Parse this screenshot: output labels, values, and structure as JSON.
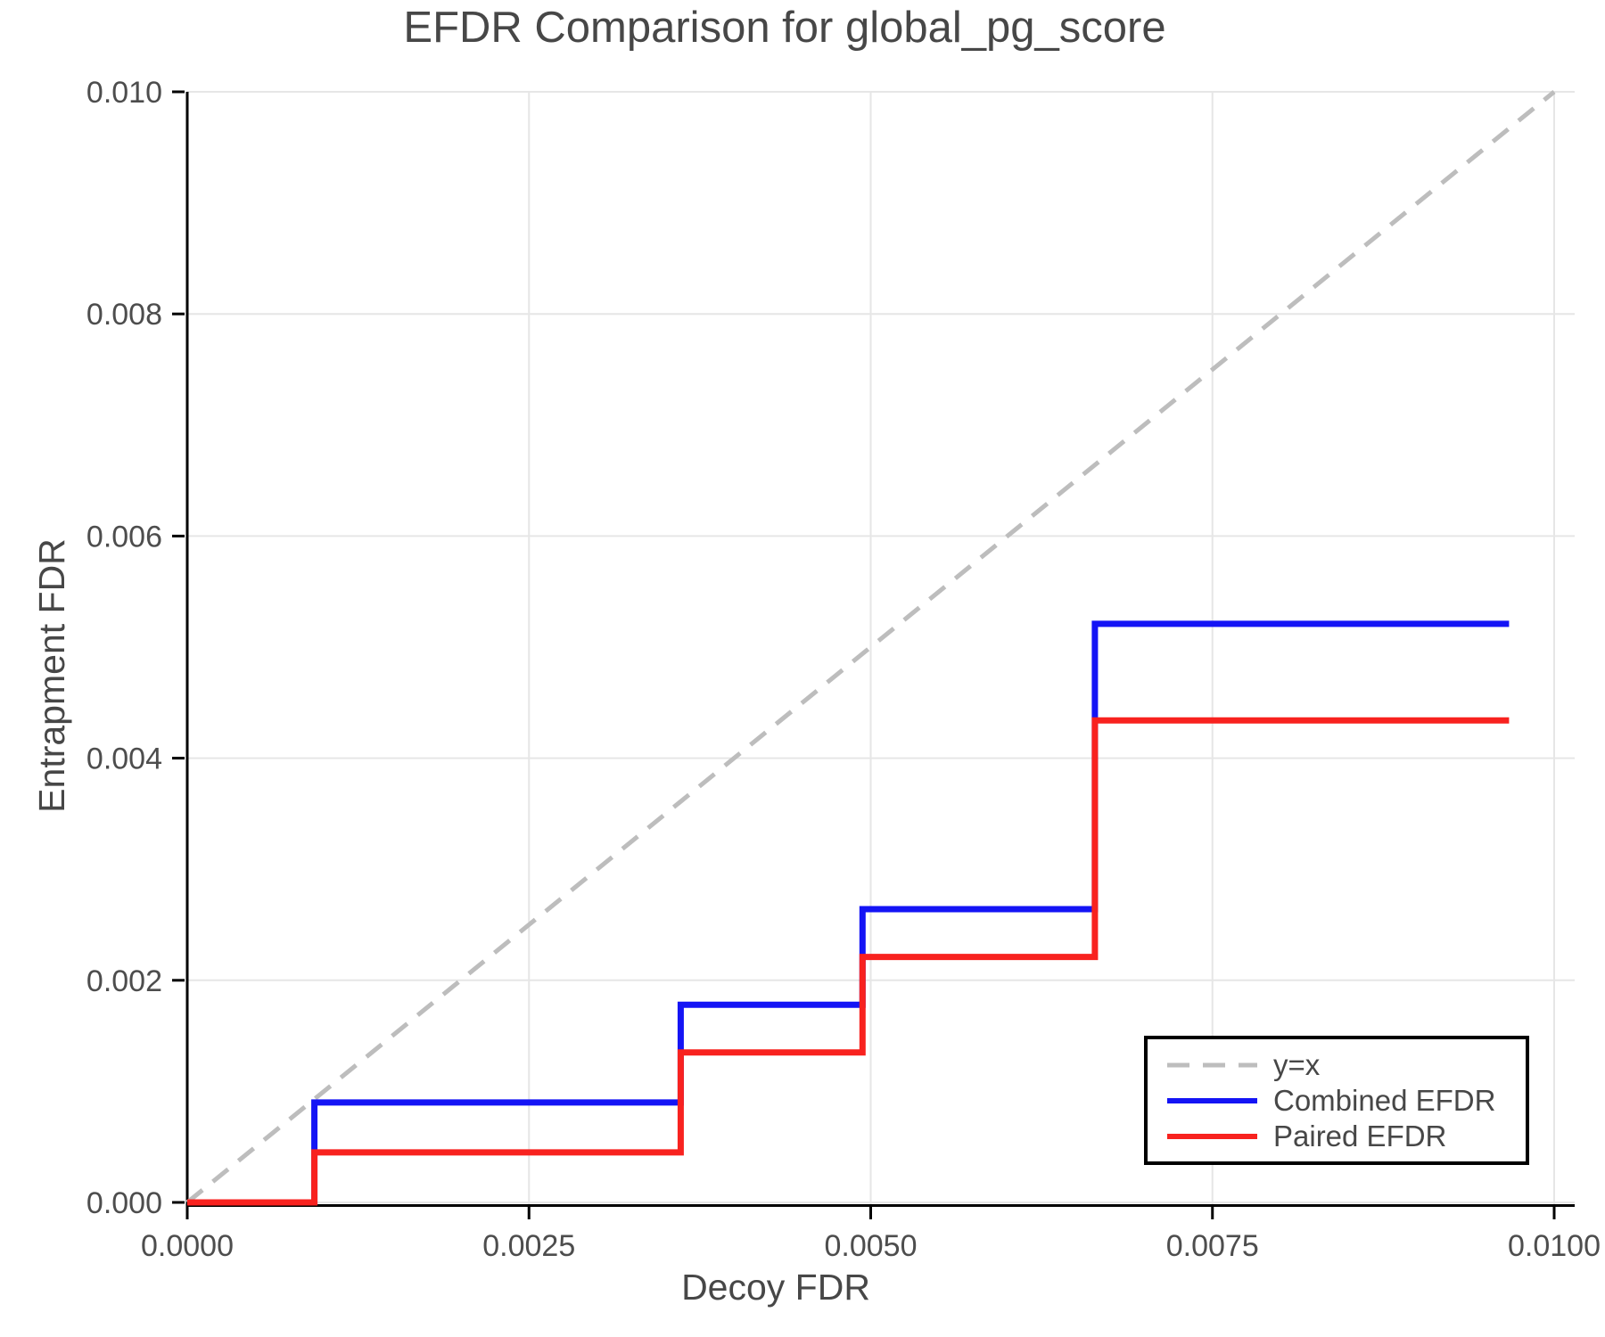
{
  "title": "EFDR Comparison for global_pg_score",
  "chart_data": {
    "type": "line",
    "title": "EFDR Comparison for global_pg_score",
    "xlabel": "Decoy FDR",
    "ylabel": "Entrapment FDR",
    "xlim": [
      0,
      0.010151
    ],
    "ylim": [
      0,
      0.01
    ],
    "grid": true,
    "legend_position": "bottom-right",
    "x_ticks": [
      {
        "value": 0.0,
        "label": "0.0000"
      },
      {
        "value": 0.0025,
        "label": "0.0025"
      },
      {
        "value": 0.005,
        "label": "0.0050"
      },
      {
        "value": 0.0075,
        "label": "0.0075"
      },
      {
        "value": 0.01,
        "label": "0.0100"
      }
    ],
    "y_ticks": [
      {
        "value": 0.0,
        "label": "0.000"
      },
      {
        "value": 0.002,
        "label": "0.002"
      },
      {
        "value": 0.004,
        "label": "0.004"
      },
      {
        "value": 0.006,
        "label": "0.006"
      },
      {
        "value": 0.008,
        "label": "0.008"
      },
      {
        "value": 0.01,
        "label": "0.010"
      }
    ],
    "series": [
      {
        "name": "y=x",
        "color": "#BDBDBD",
        "style": "dashed",
        "width": 5,
        "points": [
          [
            0,
            0
          ],
          [
            0.01,
            0.01
          ]
        ]
      },
      {
        "name": "Combined EFDR",
        "color": "#1414F5",
        "style": "solid",
        "width": 7,
        "points": [
          [
            0,
            0
          ],
          [
            0.00093,
            0
          ],
          [
            0.00093,
            0.0009
          ],
          [
            0.00361,
            0.0009
          ],
          [
            0.00361,
            0.00178
          ],
          [
            0.00494,
            0.00178
          ],
          [
            0.00494,
            0.00264
          ],
          [
            0.00664,
            0.00264
          ],
          [
            0.00664,
            0.00521
          ],
          [
            0.00967,
            0.00521
          ]
        ]
      },
      {
        "name": "Paired EFDR",
        "color": "#F8221F",
        "style": "solid",
        "width": 7,
        "points": [
          [
            0,
            0
          ],
          [
            0.00093,
            0
          ],
          [
            0.00093,
            0.00045
          ],
          [
            0.00361,
            0.00045
          ],
          [
            0.00361,
            0.00135
          ],
          [
            0.00494,
            0.00135
          ],
          [
            0.00494,
            0.00221
          ],
          [
            0.00664,
            0.00221
          ],
          [
            0.00664,
            0.00434
          ],
          [
            0.00967,
            0.00434
          ]
        ]
      }
    ]
  },
  "colors": {
    "axis": "#000000",
    "grid": "#E6E6E6",
    "tick_text": "#4D4D4D"
  }
}
